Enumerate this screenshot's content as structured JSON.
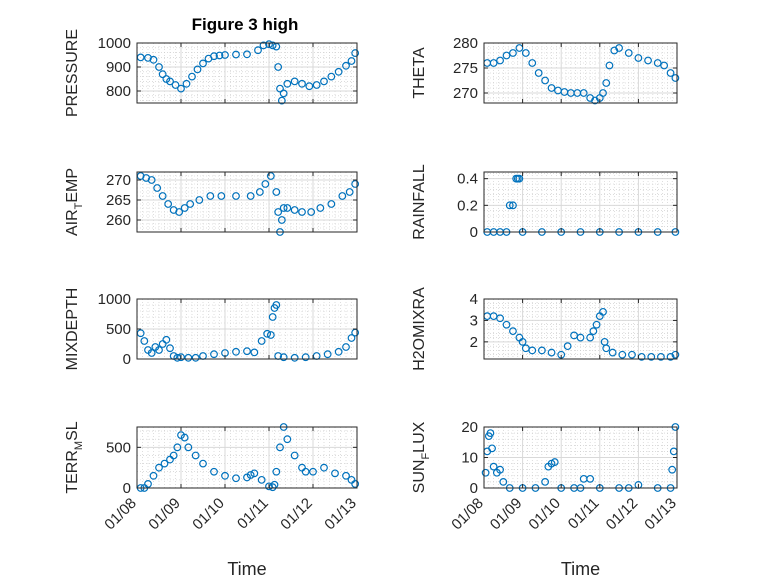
{
  "title": "Figure 3 high",
  "colors": {
    "series": "#0072BD",
    "axis": "#262626",
    "grid": "#d9d9d9",
    "minorgrid": "#c8c8c8"
  },
  "chart_data": [
    {
      "type": "scatter",
      "ylabel": "PRESSURE",
      "ylim": [
        750,
        1000
      ],
      "yticks": [
        "800",
        "900",
        "1000"
      ],
      "ytickvals": [
        800,
        900,
        1000
      ],
      "x": [
        "01/08 02:00",
        "01/08 06:00",
        "01/08 09:00",
        "01/08 12:00",
        "01/08 14:00",
        "01/08 16:00",
        "01/08 18:00",
        "01/08 21:00",
        "01/09 00:00",
        "01/09 03:00",
        "01/09 06:00",
        "01/09 09:00",
        "01/09 12:00",
        "01/09 15:00",
        "01/09 18:00",
        "01/09 21:00",
        "01/10 00:00",
        "01/10 06:00",
        "01/10 12:00",
        "01/10 18:00",
        "01/10 21:00",
        "01/11 00:00",
        "01/11 02:00",
        "01/11 04:00",
        "01/11 05:00",
        "01/11 06:00",
        "01/11 07:00",
        "01/11 08:00",
        "01/11 10:00",
        "01/11 14:00",
        "01/11 18:00",
        "01/11 22:00",
        "01/12 02:00",
        "01/12 06:00",
        "01/12 10:00",
        "01/12 14:00",
        "01/12 18:00",
        "01/12 21:00",
        "01/12 23:00"
      ],
      "y": [
        940,
        938,
        930,
        900,
        870,
        850,
        840,
        825,
        810,
        830,
        860,
        890,
        915,
        935,
        945,
        948,
        950,
        952,
        953,
        970,
        990,
        995,
        990,
        985,
        900,
        810,
        760,
        790,
        830,
        840,
        830,
        820,
        825,
        840,
        860,
        880,
        905,
        925,
        958
      ]
    },
    {
      "type": "scatter",
      "ylabel": "THETA",
      "ylim": [
        268,
        280
      ],
      "yticks": [
        "270",
        "275",
        "280"
      ],
      "ytickvals": [
        270,
        275,
        280
      ],
      "x": [
        "01/08 02:00",
        "01/08 06:00",
        "01/08 10:00",
        "01/08 14:00",
        "01/08 18:00",
        "01/08 22:00",
        "01/09 02:00",
        "01/09 06:00",
        "01/09 10:00",
        "01/09 14:00",
        "01/09 18:00",
        "01/09 22:00",
        "01/10 02:00",
        "01/10 06:00",
        "01/10 10:00",
        "01/10 14:00",
        "01/10 18:00",
        "01/10 21:00",
        "01/11 00:00",
        "01/11 02:00",
        "01/11 04:00",
        "01/11 06:00",
        "01/11 09:00",
        "01/11 12:00",
        "01/11 18:00",
        "01/12 00:00",
        "01/12 06:00",
        "01/12 12:00",
        "01/12 16:00",
        "01/12 20:00",
        "01/12 23:00"
      ],
      "y": [
        276,
        276,
        276.5,
        277.5,
        278,
        279,
        278,
        276,
        274,
        272.5,
        271,
        270.5,
        270.2,
        270,
        270,
        270,
        269,
        268.5,
        269,
        270,
        272,
        275.5,
        278.5,
        279,
        278,
        277,
        276.5,
        276,
        275.5,
        274,
        273
      ]
    },
    {
      "type": "scatter",
      "ylabel": "AIR_TEMP",
      "ylim": [
        257,
        272
      ],
      "yticks": [
        "260",
        "265",
        "270"
      ],
      "ytickvals": [
        260,
        265,
        270
      ],
      "x": [
        "01/08 02:00",
        "01/08 05:00",
        "01/08 08:00",
        "01/08 11:00",
        "01/08 14:00",
        "01/08 17:00",
        "01/08 20:00",
        "01/08 23:00",
        "01/09 02:00",
        "01/09 05:00",
        "01/09 10:00",
        "01/09 16:00",
        "01/09 22:00",
        "01/10 06:00",
        "01/10 14:00",
        "01/10 19:00",
        "01/10 22:00",
        "01/11 01:00",
        "01/11 04:00",
        "01/11 05:00",
        "01/11 06:00",
        "01/11 07:00",
        "01/11 08:00",
        "01/11 10:00",
        "01/11 14:00",
        "01/11 18:00",
        "01/11 23:00",
        "01/12 04:00",
        "01/12 10:00",
        "01/12 16:00",
        "01/12 20:00",
        "01/12 23:00"
      ],
      "y": [
        271,
        270.5,
        270,
        268,
        266,
        264,
        262.5,
        262,
        263,
        264,
        265,
        266,
        266,
        266,
        266,
        267,
        269,
        271,
        267,
        262,
        257,
        260,
        263,
        263,
        262.5,
        262,
        262,
        263,
        264,
        266,
        267,
        269
      ]
    },
    {
      "type": "scatter",
      "ylabel": "RAINFALL",
      "ylim": [
        0,
        0.45
      ],
      "yticks": [
        "0",
        "0.2",
        "0.4"
      ],
      "ytickvals": [
        0,
        0.2,
        0.4
      ],
      "x": [
        "01/08 02:00",
        "01/08 06:00",
        "01/08 10:00",
        "01/08 14:00",
        "01/08 16:00",
        "01/08 18:00",
        "01/08 20:00",
        "01/08 21:00",
        "01/08 22:00",
        "01/09 00:00",
        "01/09 12:00",
        "01/10 00:00",
        "01/10 12:00",
        "01/11 00:00",
        "01/11 12:00",
        "01/12 00:00",
        "01/12 12:00",
        "01/12 23:00"
      ],
      "y": [
        0,
        0,
        0,
        0,
        0.2,
        0.2,
        0.4,
        0.4,
        0.4,
        0,
        0,
        0,
        0,
        0,
        0,
        0,
        0,
        0
      ]
    },
    {
      "type": "scatter",
      "ylabel": "MIXDEPTH",
      "ylim": [
        0,
        1000
      ],
      "yticks": [
        "0",
        "500",
        "1000"
      ],
      "ytickvals": [
        0,
        500,
        1000
      ],
      "x": [
        "01/08 02:00",
        "01/08 04:00",
        "01/08 06:00",
        "01/08 08:00",
        "01/08 10:00",
        "01/08 12:00",
        "01/08 14:00",
        "01/08 16:00",
        "01/08 18:00",
        "01/08 20:00",
        "01/08 22:00",
        "01/09 00:00",
        "01/09 04:00",
        "01/09 08:00",
        "01/09 12:00",
        "01/09 18:00",
        "01/10 00:00",
        "01/10 06:00",
        "01/10 12:00",
        "01/10 16:00",
        "01/10 20:00",
        "01/10 23:00",
        "01/11 01:00",
        "01/11 02:00",
        "01/11 03:00",
        "01/11 04:00",
        "01/11 05:00",
        "01/11 08:00",
        "01/11 14:00",
        "01/11 20:00",
        "01/12 02:00",
        "01/12 08:00",
        "01/12 14:00",
        "01/12 18:00",
        "01/12 21:00",
        "01/12 23:00"
      ],
      "y": [
        430,
        300,
        150,
        100,
        200,
        150,
        250,
        320,
        180,
        50,
        20,
        30,
        20,
        20,
        50,
        80,
        100,
        120,
        130,
        110,
        300,
        420,
        400,
        700,
        850,
        900,
        50,
        30,
        20,
        30,
        50,
        80,
        120,
        200,
        350,
        440
      ]
    },
    {
      "type": "scatter",
      "ylabel": "H2OMIXRA",
      "ylim": [
        1.2,
        4
      ],
      "yticks": [
        "2",
        "3",
        "4"
      ],
      "ytickvals": [
        2,
        3,
        4
      ],
      "x": [
        "01/08 02:00",
        "01/08 06:00",
        "01/08 10:00",
        "01/08 14:00",
        "01/08 18:00",
        "01/08 22:00",
        "01/09 00:00",
        "01/09 02:00",
        "01/09 06:00",
        "01/09 12:00",
        "01/09 18:00",
        "01/10 00:00",
        "01/10 04:00",
        "01/10 08:00",
        "01/10 12:00",
        "01/10 18:00",
        "01/10 20:00",
        "01/10 22:00",
        "01/11 00:00",
        "01/11 02:00",
        "01/11 03:00",
        "01/11 04:00",
        "01/11 08:00",
        "01/11 14:00",
        "01/11 20:00",
        "01/12 02:00",
        "01/12 08:00",
        "01/12 14:00",
        "01/12 20:00",
        "01/12 23:00"
      ],
      "y": [
        3.2,
        3.2,
        3.1,
        2.8,
        2.5,
        2.2,
        2,
        1.7,
        1.6,
        1.6,
        1.5,
        1.4,
        1.8,
        2.3,
        2.2,
        2.2,
        2.5,
        2.8,
        3.2,
        3.4,
        2.0,
        1.7,
        1.5,
        1.4,
        1.4,
        1.3,
        1.3,
        1.3,
        1.3,
        1.4
      ]
    },
    {
      "type": "scatter",
      "ylabel": "TERR_MSL",
      "ylim": [
        0,
        750
      ],
      "yticks": [
        "0",
        "500"
      ],
      "ytickvals": [
        0,
        500
      ],
      "x": [
        "01/08 02:00",
        "01/08 04:00",
        "01/08 06:00",
        "01/08 09:00",
        "01/08 12:00",
        "01/08 15:00",
        "01/08 18:00",
        "01/08 20:00",
        "01/08 22:00",
        "01/09 00:00",
        "01/09 02:00",
        "01/09 04:00",
        "01/09 08:00",
        "01/09 12:00",
        "01/09 18:00",
        "01/10 00:00",
        "01/10 06:00",
        "01/10 12:00",
        "01/10 14:00",
        "01/10 16:00",
        "01/10 20:00",
        "01/11 00:00",
        "01/11 02:00",
        "01/11 03:00",
        "01/11 04:00",
        "01/11 06:00",
        "01/11 08:00",
        "01/11 10:00",
        "01/11 14:00",
        "01/11 18:00",
        "01/11 20:00",
        "01/12 00:00",
        "01/12 06:00",
        "01/12 12:00",
        "01/12 18:00",
        "01/12 21:00",
        "01/12 23:00"
      ],
      "y": [
        0,
        0,
        50,
        150,
        250,
        300,
        350,
        400,
        500,
        650,
        620,
        500,
        400,
        300,
        200,
        150,
        120,
        130,
        160,
        180,
        100,
        20,
        10,
        40,
        200,
        500,
        750,
        600,
        400,
        250,
        200,
        200,
        250,
        180,
        150,
        100,
        50
      ]
    },
    {
      "type": "scatter",
      "ylabel": "SUN_FLUX",
      "ylim": [
        0,
        20
      ],
      "yticks": [
        "0",
        "10",
        "20"
      ],
      "ytickvals": [
        0,
        10,
        20
      ],
      "x": [
        "01/08 01:00",
        "01/08 02:00",
        "01/08 03:00",
        "01/08 04:00",
        "01/08 05:00",
        "01/08 06:00",
        "01/08 08:00",
        "01/08 10:00",
        "01/08 12:00",
        "01/08 16:00",
        "01/09 00:00",
        "01/09 08:00",
        "01/09 14:00",
        "01/09 16:00",
        "01/09 18:00",
        "01/09 20:00",
        "01/10 00:00",
        "01/10 08:00",
        "01/10 12:00",
        "01/10 14:00",
        "01/10 18:00",
        "01/11 00:00",
        "01/11 12:00",
        "01/11 18:00",
        "01/12 00:00",
        "01/12 12:00",
        "01/12 20:00",
        "01/12 21:00",
        "01/12 22:00",
        "01/12 23:00"
      ],
      "y": [
        5,
        12,
        17,
        18,
        13,
        7,
        5,
        6,
        2,
        0,
        0,
        0,
        2,
        7,
        8,
        8.5,
        0,
        0,
        0,
        3,
        3,
        0,
        0,
        0,
        1,
        0,
        0,
        6,
        12,
        20
      ]
    }
  ],
  "xaxis": {
    "xlabel": "Time",
    "ticks": [
      "01/08",
      "01/09",
      "01/10",
      "01/11",
      "01/12",
      "01/13"
    ],
    "range": [
      "01/08",
      "01/13"
    ]
  }
}
